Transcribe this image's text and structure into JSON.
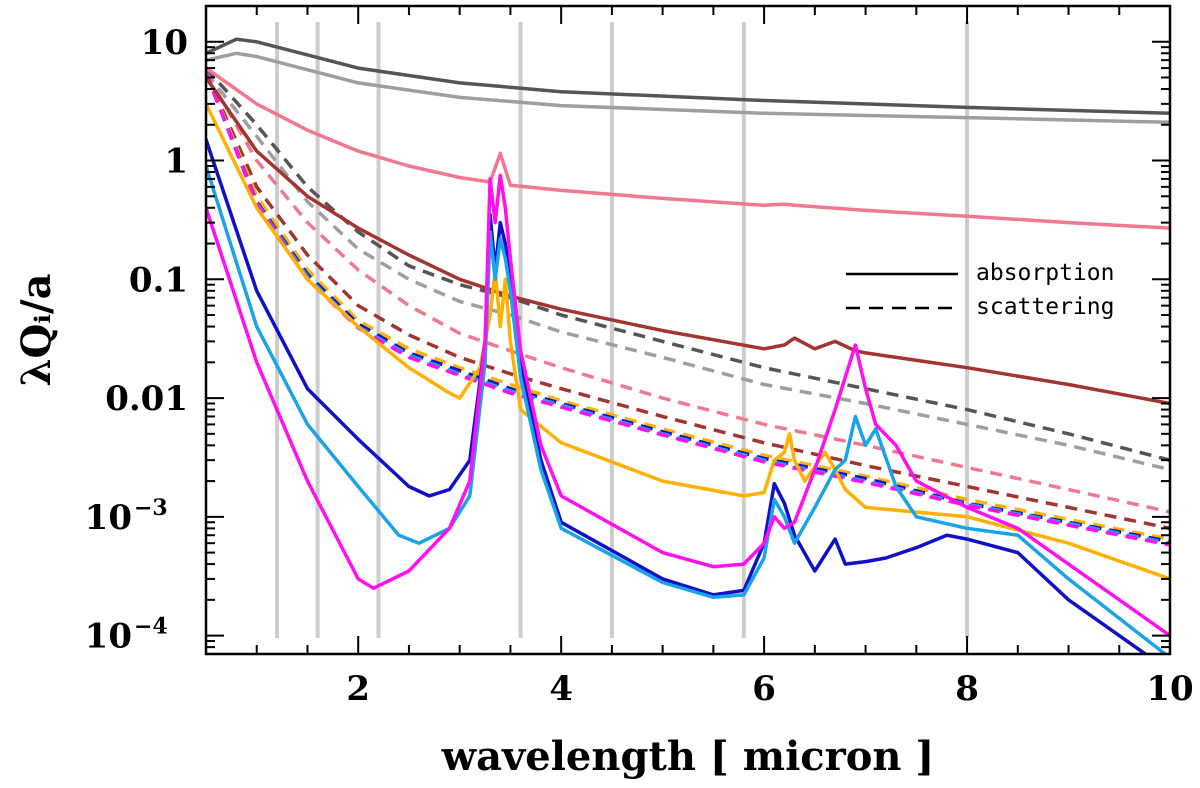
{
  "chart_data": {
    "type": "line",
    "xlabel": "wavelength [ micron ]",
    "ylabel": "λQᵢ/a",
    "xlim": [
      0.5,
      10
    ],
    "ylim": [
      7e-05,
      20
    ],
    "yscale": "log",
    "x_ticks": [
      2,
      4,
      6,
      8,
      10
    ],
    "y_ticks": [
      {
        "value": 10,
        "label": "10",
        "exp": ""
      },
      {
        "value": 1,
        "label": "1",
        "exp": ""
      },
      {
        "value": 0.1,
        "label": "0.1",
        "exp": ""
      },
      {
        "value": 0.01,
        "label": "0.01",
        "exp": ""
      },
      {
        "value": 0.001,
        "label": "10",
        "exp": "−3"
      },
      {
        "value": 0.0001,
        "label": "10",
        "exp": "−4"
      }
    ],
    "reference_lines": {
      "x": [
        1.2,
        1.6,
        2.2,
        3.6,
        4.5,
        5.8,
        8.0
      ],
      "color": "#cccccc"
    },
    "legend": {
      "position": "upper-right",
      "entries": [
        {
          "label": "absorption",
          "style": "solid"
        },
        {
          "label": "scattering",
          "style": "dashed"
        }
      ]
    },
    "series": [
      {
        "style": "solid",
        "color": "#555555",
        "x": [
          0.5,
          0.8,
          1,
          2,
          3,
          4,
          6,
          8,
          10
        ],
        "y": [
          8,
          10.5,
          10,
          6,
          4.5,
          3.8,
          3.2,
          2.8,
          2.5
        ]
      },
      {
        "style": "solid",
        "color": "#9e9e9e",
        "x": [
          0.5,
          0.8,
          1,
          2,
          3,
          4,
          6,
          8,
          10
        ],
        "y": [
          7,
          8,
          7.5,
          4.5,
          3.4,
          2.9,
          2.5,
          2.3,
          2.1
        ]
      },
      {
        "style": "solid",
        "color": "#f07890",
        "x": [
          0.5,
          1,
          1.5,
          2,
          2.5,
          3,
          3.3,
          3.4,
          3.5,
          4,
          5,
          6,
          6.2,
          6.3,
          7,
          8,
          9,
          10
        ],
        "y": [
          6,
          3,
          1.8,
          1.2,
          0.9,
          0.72,
          0.66,
          1.15,
          0.62,
          0.56,
          0.48,
          0.42,
          0.43,
          0.42,
          0.38,
          0.34,
          0.3,
          0.27
        ]
      },
      {
        "style": "solid",
        "color": "#a23530",
        "x": [
          0.5,
          1,
          1.5,
          2,
          2.5,
          3,
          3.5,
          4,
          5,
          6,
          6.2,
          6.3,
          6.5,
          6.7,
          6.9,
          7,
          8,
          9,
          10
        ],
        "y": [
          5,
          1.2,
          0.5,
          0.27,
          0.16,
          0.1,
          0.072,
          0.056,
          0.037,
          0.026,
          0.028,
          0.032,
          0.026,
          0.03,
          0.025,
          0.024,
          0.018,
          0.013,
          0.009
        ]
      },
      {
        "style": "solid",
        "color": "#ffb000",
        "x": [
          0.5,
          1,
          1.5,
          2,
          2.5,
          2.9,
          3.0,
          3.2,
          3.3,
          3.35,
          3.4,
          3.45,
          3.5,
          3.6,
          4,
          5,
          5.8,
          6.0,
          6.1,
          6.2,
          6.25,
          6.3,
          6.4,
          6.6,
          6.7,
          6.8,
          7,
          8,
          9,
          10
        ],
        "y": [
          3,
          0.4,
          0.1,
          0.04,
          0.018,
          0.011,
          0.01,
          0.018,
          0.05,
          0.12,
          0.04,
          0.1,
          0.03,
          0.008,
          0.0042,
          0.002,
          0.0015,
          0.0016,
          0.003,
          0.0035,
          0.005,
          0.003,
          0.002,
          0.0035,
          0.0025,
          0.0017,
          0.0012,
          0.001,
          0.0006,
          0.0003
        ]
      },
      {
        "style": "solid",
        "color": "#1010c8",
        "x": [
          0.5,
          1,
          1.5,
          2,
          2.5,
          2.7,
          2.9,
          3.1,
          3.25,
          3.3,
          3.35,
          3.4,
          3.45,
          3.5,
          3.6,
          3.8,
          4,
          5,
          5.5,
          5.8,
          6.0,
          6.1,
          6.2,
          6.3,
          6.5,
          6.7,
          6.8,
          7,
          7.2,
          7.5,
          7.8,
          8,
          8.5,
          9,
          10
        ],
        "y": [
          1.5,
          0.08,
          0.012,
          0.0045,
          0.0018,
          0.0015,
          0.0017,
          0.003,
          0.03,
          0.35,
          0.12,
          0.3,
          0.2,
          0.1,
          0.02,
          0.003,
          0.0009,
          0.0003,
          0.00022,
          0.00024,
          0.0006,
          0.0019,
          0.0013,
          0.0007,
          0.00035,
          0.00065,
          0.0004,
          0.00042,
          0.00045,
          0.00055,
          0.0007,
          0.00065,
          0.0005,
          0.0002,
          5e-05
        ]
      },
      {
        "style": "solid",
        "color": "#1aa3e8",
        "x": [
          0.5,
          1,
          1.5,
          2,
          2.4,
          2.6,
          2.9,
          3.1,
          3.25,
          3.3,
          3.35,
          3.4,
          3.45,
          3.5,
          3.6,
          3.8,
          4,
          5,
          5.5,
          5.8,
          6.0,
          6.1,
          6.2,
          6.3,
          6.5,
          6.7,
          6.8,
          6.9,
          7,
          7.1,
          7.3,
          7.5,
          8,
          8.5,
          9,
          10
        ],
        "y": [
          0.9,
          0.04,
          0.006,
          0.0018,
          0.0007,
          0.0006,
          0.0008,
          0.0015,
          0.02,
          0.25,
          0.1,
          0.22,
          0.15,
          0.08,
          0.015,
          0.0025,
          0.0008,
          0.00028,
          0.00021,
          0.00022,
          0.00045,
          0.0014,
          0.001,
          0.0006,
          0.0012,
          0.0025,
          0.003,
          0.007,
          0.004,
          0.0055,
          0.0018,
          0.001,
          0.0008,
          0.0007,
          0.0003,
          6.5e-05
        ]
      },
      {
        "style": "solid",
        "color": "#ff10f0",
        "x": [
          0.5,
          1,
          1.5,
          2,
          2.15,
          2.5,
          2.9,
          3.1,
          3.25,
          3.3,
          3.35,
          3.4,
          3.45,
          3.5,
          3.6,
          3.8,
          4,
          5,
          5.5,
          5.8,
          6.0,
          6.1,
          6.2,
          6.3,
          6.5,
          6.7,
          6.8,
          6.9,
          7,
          7.1,
          7.3,
          7.5,
          8,
          8.5,
          9,
          10
        ],
        "y": [
          0.4,
          0.02,
          0.002,
          0.0003,
          0.00025,
          0.00035,
          0.0008,
          0.002,
          0.03,
          0.7,
          0.3,
          0.75,
          0.4,
          0.15,
          0.025,
          0.004,
          0.0015,
          0.0005,
          0.00038,
          0.0004,
          0.0006,
          0.001,
          0.0008,
          0.0009,
          0.0025,
          0.008,
          0.015,
          0.028,
          0.012,
          0.006,
          0.004,
          0.002,
          0.0012,
          0.0008,
          0.0004,
          0.0001
        ]
      },
      {
        "style": "dashed",
        "color": "#555555",
        "x": [
          0.5,
          1,
          1.5,
          2,
          2.5,
          3,
          3.5,
          4,
          5,
          6,
          7,
          8,
          9,
          10
        ],
        "y": [
          6,
          2,
          0.6,
          0.25,
          0.13,
          0.09,
          0.07,
          0.05,
          0.03,
          0.018,
          0.012,
          0.008,
          0.005,
          0.003
        ]
      },
      {
        "style": "dashed",
        "color": "#9e9e9e",
        "x": [
          0.5,
          1,
          1.5,
          2,
          2.5,
          3,
          3.5,
          4,
          5,
          6,
          7,
          8,
          9,
          10
        ],
        "y": [
          5.5,
          1.6,
          0.45,
          0.18,
          0.1,
          0.065,
          0.05,
          0.036,
          0.022,
          0.013,
          0.009,
          0.006,
          0.004,
          0.0025
        ]
      },
      {
        "style": "dashed",
        "color": "#f07890",
        "x": [
          0.5,
          1,
          1.5,
          2,
          2.5,
          3,
          3.5,
          4,
          5,
          6,
          7,
          8,
          9,
          10
        ],
        "y": [
          5.5,
          1,
          0.3,
          0.12,
          0.06,
          0.035,
          0.025,
          0.018,
          0.01,
          0.006,
          0.004,
          0.0026,
          0.0017,
          0.0011
        ]
      },
      {
        "style": "dashed",
        "color": "#a23530",
        "x": [
          0.5,
          1,
          1.5,
          2,
          2.5,
          3,
          3.5,
          4,
          5,
          6,
          7,
          8,
          9,
          10
        ],
        "y": [
          5.5,
          0.6,
          0.16,
          0.06,
          0.034,
          0.022,
          0.016,
          0.012,
          0.007,
          0.0042,
          0.0027,
          0.0018,
          0.0012,
          0.0008
        ]
      },
      {
        "style": "dashed",
        "color": "#ffb000",
        "x": [
          0.5,
          1,
          1.5,
          2,
          2.5,
          3,
          3.5,
          4,
          5,
          6,
          7,
          8,
          9,
          10
        ],
        "y": [
          5.5,
          0.5,
          0.12,
          0.045,
          0.026,
          0.018,
          0.013,
          0.0095,
          0.0055,
          0.0033,
          0.0022,
          0.0014,
          0.00095,
          0.00065
        ]
      },
      {
        "style": "dashed",
        "color": "#1010c8",
        "x": [
          0.5,
          1,
          1.5,
          2,
          2.5,
          3,
          3.5,
          4,
          5,
          6,
          7,
          8,
          9,
          10
        ],
        "y": [
          5.5,
          0.45,
          0.11,
          0.042,
          0.024,
          0.017,
          0.012,
          0.009,
          0.0052,
          0.0031,
          0.0021,
          0.0013,
          0.0009,
          0.00062
        ]
      },
      {
        "style": "dashed",
        "color": "#1aa3e8",
        "x": [
          0.5,
          1,
          1.5,
          2,
          2.5,
          3,
          3.5,
          4,
          5,
          6,
          7,
          8,
          9,
          10
        ],
        "y": [
          5.5,
          0.44,
          0.105,
          0.04,
          0.023,
          0.016,
          0.0115,
          0.0087,
          0.005,
          0.003,
          0.002,
          0.00128,
          0.00088,
          0.0006
        ]
      },
      {
        "style": "dashed",
        "color": "#ff10f0",
        "x": [
          0.5,
          1,
          1.5,
          2,
          2.5,
          3,
          3.5,
          4,
          5,
          6,
          7,
          8,
          9,
          10
        ],
        "y": [
          5.5,
          0.43,
          0.1,
          0.039,
          0.022,
          0.0155,
          0.011,
          0.0084,
          0.0049,
          0.0029,
          0.00195,
          0.00125,
          0.00085,
          0.00058
        ]
      }
    ]
  }
}
